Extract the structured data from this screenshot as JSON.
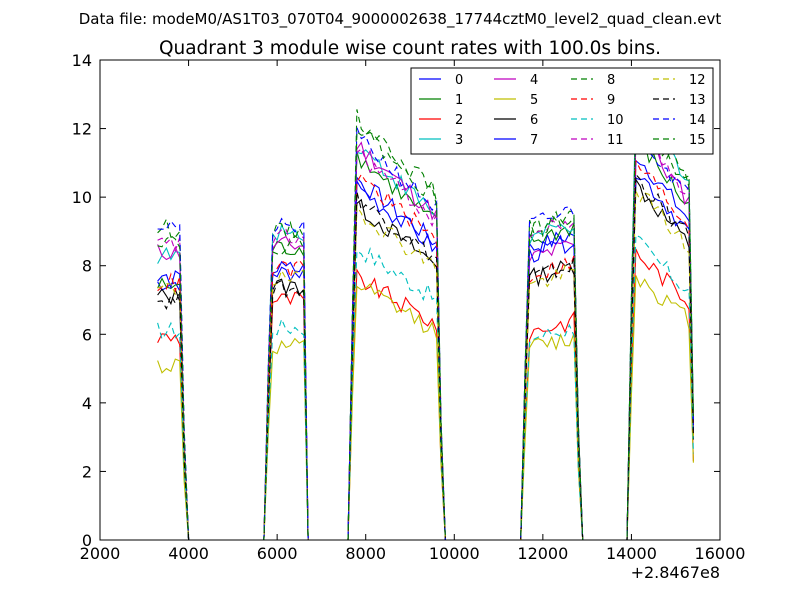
{
  "chart_data": {
    "type": "line",
    "suptitle": "Data file: modeM0/AS1T03_070T04_9000002638_17744cztM0_level2_quad_clean.evt",
    "title": "Quadrant 3 module wise count rates with 100.0s bins.",
    "xlabel": "",
    "ylabel": "",
    "x_offset_label": "+2.8467e8",
    "xlim": [
      2000,
      16000
    ],
    "ylim": [
      0,
      14
    ],
    "xticks": [
      2000,
      4000,
      6000,
      8000,
      10000,
      12000,
      14000,
      16000
    ],
    "yticks": [
      0,
      2,
      4,
      6,
      8,
      10,
      12,
      14
    ],
    "xtick_labels": [
      "2000",
      "4000",
      "6000",
      "8000",
      "10000",
      "12000",
      "14000",
      "16000"
    ],
    "ytick_labels": [
      "0",
      "2",
      "4",
      "6",
      "8",
      "10",
      "12",
      "14"
    ],
    "legend_position": "top-right",
    "grid": false,
    "segments": [
      {
        "start": 3300,
        "end": 3900
      },
      {
        "start": 5800,
        "end": 6650
      },
      {
        "start": 7700,
        "end": 9700
      },
      {
        "start": 11600,
        "end": 12800
      },
      {
        "start": 14000,
        "end": 15400
      }
    ],
    "series": [
      {
        "name": "0",
        "color": "#0000ff",
        "dash": "solid",
        "levels": [
          7.5,
          7.8,
          9.5,
          8.8,
          10.2
        ]
      },
      {
        "name": "1",
        "color": "#008000",
        "dash": "solid",
        "levels": [
          7.4,
          8.5,
          10.1,
          9.0,
          10.6
        ]
      },
      {
        "name": "2",
        "color": "#ff0000",
        "dash": "solid",
        "levels": [
          5.9,
          7.0,
          6.9,
          6.3,
          7.6
        ]
      },
      {
        "name": "3",
        "color": "#00bfbf",
        "dash": "solid",
        "levels": [
          8.3,
          9.0,
          10.4,
          9.1,
          11.5
        ]
      },
      {
        "name": "4",
        "color": "#bf00bf",
        "dash": "solid",
        "levels": [
          8.4,
          8.6,
          10.4,
          8.5,
          10.8
        ]
      },
      {
        "name": "5",
        "color": "#bfbf00",
        "dash": "solid",
        "levels": [
          5.1,
          5.6,
          6.7,
          5.8,
          7.0
        ]
      },
      {
        "name": "6",
        "color": "#000000",
        "dash": "solid",
        "levels": [
          7.1,
          7.4,
          8.8,
          7.9,
          9.4
        ]
      },
      {
        "name": "7",
        "color": "#0000ff",
        "dash": "solid",
        "levels": [
          7.6,
          7.9,
          9.3,
          8.6,
          9.8
        ]
      },
      {
        "name": "8",
        "color": "#008000",
        "dash": "dashed",
        "levels": [
          9.1,
          9.0,
          11.1,
          9.4,
          11.3
        ]
      },
      {
        "name": "9",
        "color": "#ff0000",
        "dash": "dashed",
        "levels": [
          7.5,
          7.9,
          9.6,
          8.0,
          10.0
        ]
      },
      {
        "name": "10",
        "color": "#00bfbf",
        "dash": "dashed",
        "levels": [
          6.1,
          6.2,
          7.7,
          6.1,
          7.9
        ]
      },
      {
        "name": "11",
        "color": "#bf00bf",
        "dash": "dashed",
        "levels": [
          8.6,
          8.8,
          10.2,
          9.2,
          11.0
        ]
      },
      {
        "name": "12",
        "color": "#bfbf00",
        "dash": "dashed",
        "levels": [
          7.3,
          7.6,
          8.7,
          7.7,
          9.3
        ]
      },
      {
        "name": "13",
        "color": "#000000",
        "dash": "dashed",
        "levels": [
          7.0,
          7.3,
          9.0,
          7.9,
          9.6
        ]
      },
      {
        "name": "14",
        "color": "#0000ff",
        "dash": "dashed",
        "levels": [
          9.2,
          9.1,
          10.6,
          9.5,
          10.9
        ]
      },
      {
        "name": "15",
        "color": "#008000",
        "dash": "dashed",
        "levels": [
          8.8,
          8.6,
          10.9,
          9.3,
          11.4
        ]
      }
    ]
  }
}
